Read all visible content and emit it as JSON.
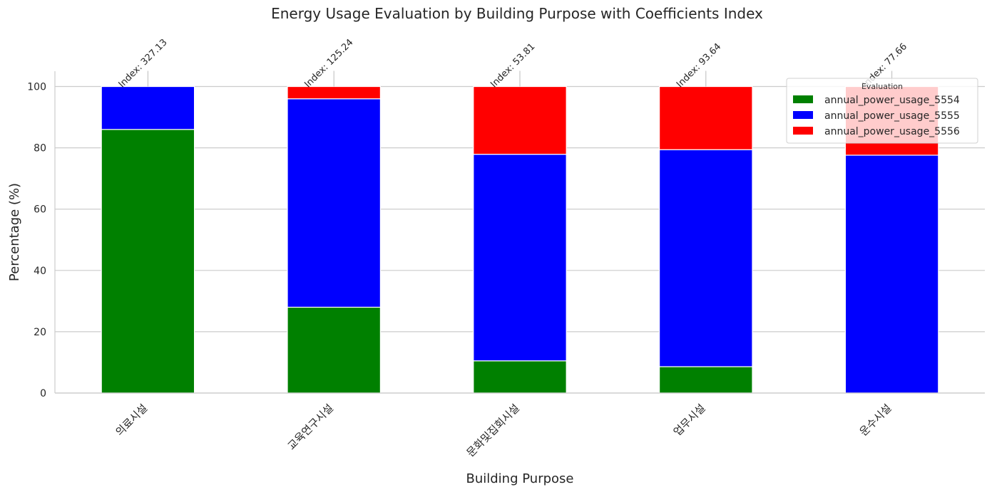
{
  "chart_data": {
    "type": "bar",
    "stacked": true,
    "title": "Energy Usage Evaluation by Building Purpose with Coefficients Index",
    "xlabel": "Building Purpose",
    "ylabel": "Percentage (%)",
    "ylim": [
      0,
      105
    ],
    "yticks": [
      0,
      20,
      40,
      60,
      80,
      100
    ],
    "grid": "horizontal",
    "legend": {
      "title": "Evaluation",
      "placement": "top-right"
    },
    "categories": [
      "의료시설",
      "교육연구시설",
      "문화및집회시설",
      "업무시설",
      "운수시설"
    ],
    "series": [
      {
        "name": "annual_power_usage_5554",
        "color": "#008000",
        "values": [
          86.0,
          28.0,
          10.5,
          8.6,
          0.0
        ]
      },
      {
        "name": "annual_power_usage_5555",
        "color": "#0000ff",
        "values": [
          14.0,
          68.0,
          67.4,
          70.8,
          77.6
        ]
      },
      {
        "name": "annual_power_usage_5556",
        "color": "#ff0000",
        "values": [
          0.0,
          4.0,
          22.1,
          20.6,
          22.4
        ]
      }
    ],
    "annotations": [
      "Index: 327.13",
      "Index: 125.24",
      "Index: 53.81",
      "Index: 93.64",
      "Index: 77.66"
    ]
  }
}
